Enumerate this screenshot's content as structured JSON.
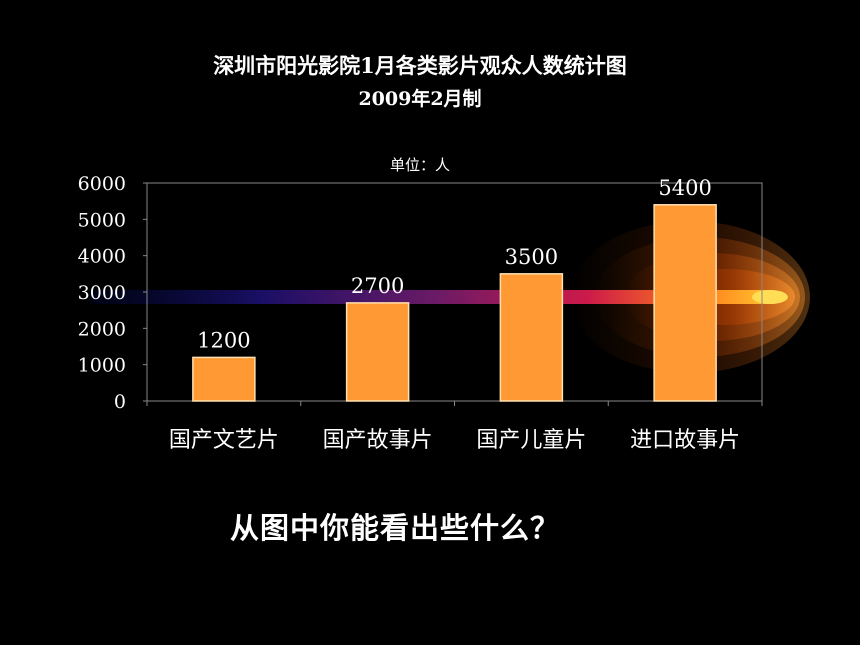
{
  "chart_data": {
    "type": "bar",
    "title": "深圳市阳光影院1月各类影片观众人数统计图",
    "subtitle": "2009年2月制",
    "unit_label": "单位：人",
    "categories": [
      "国产文艺片",
      "国产故事片",
      "国产儿童片",
      "进口故事片"
    ],
    "values": [
      1200,
      2700,
      3500,
      5400
    ],
    "ylim": [
      0,
      6000
    ],
    "yticks": [
      0,
      1000,
      2000,
      3000,
      4000,
      5000,
      6000
    ],
    "data_labels": [
      "1200",
      "2700",
      "3500",
      "5400"
    ],
    "legend": "none",
    "grid": false,
    "colors": {
      "bar_fill": "#FF9933",
      "bar_stroke": "#FFE0B0",
      "axis": "#888888",
      "text": "#ffffff"
    }
  },
  "question": "从图中你能看出些什么？"
}
